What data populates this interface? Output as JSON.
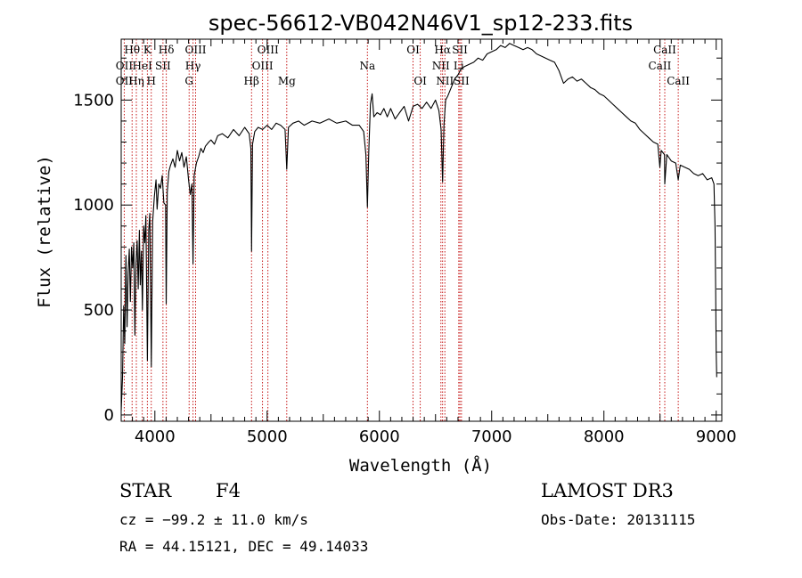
{
  "chart_data": {
    "type": "line",
    "title": "spec-56612-VB042N46V1_sp12-233.fits",
    "xlabel": "Wavelength (Å)",
    "ylabel": "Flux (relative)",
    "xlim": [
      3700,
      9050
    ],
    "ylim": [
      -30,
      1790
    ],
    "x_ticks": [
      4000,
      5000,
      6000,
      7000,
      8000,
      9000
    ],
    "y_ticks": [
      0,
      500,
      1000,
      1500
    ],
    "series": [
      {
        "name": "flux",
        "points": [
          [
            3700,
            20
          ],
          [
            3712,
            180
          ],
          [
            3722,
            520
          ],
          [
            3732,
            340
          ],
          [
            3742,
            760
          ],
          [
            3752,
            420
          ],
          [
            3762,
            680
          ],
          [
            3772,
            790
          ],
          [
            3782,
            540
          ],
          [
            3792,
            800
          ],
          [
            3802,
            700
          ],
          [
            3812,
            820
          ],
          [
            3822,
            380
          ],
          [
            3832,
            720
          ],
          [
            3842,
            830
          ],
          [
            3852,
            600
          ],
          [
            3862,
            880
          ],
          [
            3870,
            620
          ],
          [
            3880,
            780
          ],
          [
            3889,
            500
          ],
          [
            3900,
            900
          ],
          [
            3910,
            820
          ],
          [
            3920,
            950
          ],
          [
            3933,
            260
          ],
          [
            3945,
            880
          ],
          [
            3955,
            960
          ],
          [
            3968,
            230
          ],
          [
            3980,
            920
          ],
          [
            3995,
            1040
          ],
          [
            4010,
            1120
          ],
          [
            4020,
            980
          ],
          [
            4035,
            1100
          ],
          [
            4050,
            1080
          ],
          [
            4065,
            1140
          ],
          [
            4080,
            1010
          ],
          [
            4095,
            1000
          ],
          [
            4101,
            530
          ],
          [
            4110,
            1060
          ],
          [
            4125,
            1160
          ],
          [
            4140,
            1190
          ],
          [
            4160,
            1220
          ],
          [
            4180,
            1180
          ],
          [
            4200,
            1260
          ],
          [
            4220,
            1210
          ],
          [
            4240,
            1250
          ],
          [
            4260,
            1180
          ],
          [
            4280,
            1230
          ],
          [
            4300,
            1120
          ],
          [
            4315,
            1050
          ],
          [
            4330,
            1100
          ],
          [
            4340,
            720
          ],
          [
            4350,
            1140
          ],
          [
            4370,
            1200
          ],
          [
            4390,
            1230
          ],
          [
            4410,
            1270
          ],
          [
            4430,
            1250
          ],
          [
            4450,
            1280
          ],
          [
            4480,
            1300
          ],
          [
            4500,
            1310
          ],
          [
            4530,
            1290
          ],
          [
            4560,
            1330
          ],
          [
            4600,
            1340
          ],
          [
            4650,
            1320
          ],
          [
            4700,
            1360
          ],
          [
            4750,
            1330
          ],
          [
            4800,
            1370
          ],
          [
            4840,
            1340
          ],
          [
            4855,
            1270
          ],
          [
            4861,
            780
          ],
          [
            4870,
            1290
          ],
          [
            4890,
            1350
          ],
          [
            4920,
            1370
          ],
          [
            4960,
            1360
          ],
          [
            5000,
            1380
          ],
          [
            5040,
            1360
          ],
          [
            5080,
            1390
          ],
          [
            5120,
            1380
          ],
          [
            5160,
            1360
          ],
          [
            5175,
            1170
          ],
          [
            5190,
            1370
          ],
          [
            5230,
            1390
          ],
          [
            5280,
            1400
          ],
          [
            5330,
            1380
          ],
          [
            5400,
            1400
          ],
          [
            5470,
            1390
          ],
          [
            5550,
            1410
          ],
          [
            5620,
            1390
          ],
          [
            5700,
            1400
          ],
          [
            5760,
            1380
          ],
          [
            5820,
            1380
          ],
          [
            5860,
            1350
          ],
          [
            5880,
            1240
          ],
          [
            5893,
            990
          ],
          [
            5905,
            1250
          ],
          [
            5920,
            1480
          ],
          [
            5935,
            1530
          ],
          [
            5950,
            1420
          ],
          [
            5980,
            1440
          ],
          [
            6010,
            1430
          ],
          [
            6040,
            1460
          ],
          [
            6070,
            1420
          ],
          [
            6100,
            1460
          ],
          [
            6140,
            1410
          ],
          [
            6180,
            1440
          ],
          [
            6220,
            1470
          ],
          [
            6260,
            1400
          ],
          [
            6300,
            1470
          ],
          [
            6340,
            1480
          ],
          [
            6380,
            1460
          ],
          [
            6420,
            1490
          ],
          [
            6460,
            1460
          ],
          [
            6500,
            1500
          ],
          [
            6530,
            1450
          ],
          [
            6550,
            1360
          ],
          [
            6563,
            1110
          ],
          [
            6575,
            1380
          ],
          [
            6590,
            1500
          ],
          [
            6610,
            1520
          ],
          [
            6640,
            1560
          ],
          [
            6670,
            1600
          ],
          [
            6700,
            1620
          ],
          [
            6730,
            1650
          ],
          [
            6760,
            1660
          ],
          [
            6800,
            1670
          ],
          [
            6840,
            1680
          ],
          [
            6880,
            1700
          ],
          [
            6920,
            1690
          ],
          [
            6960,
            1720
          ],
          [
            7000,
            1730
          ],
          [
            7040,
            1740
          ],
          [
            7080,
            1760
          ],
          [
            7120,
            1750
          ],
          [
            7160,
            1770
          ],
          [
            7200,
            1760
          ],
          [
            7240,
            1750
          ],
          [
            7280,
            1740
          ],
          [
            7320,
            1750
          ],
          [
            7360,
            1740
          ],
          [
            7400,
            1720
          ],
          [
            7440,
            1710
          ],
          [
            7480,
            1700
          ],
          [
            7520,
            1690
          ],
          [
            7560,
            1680
          ],
          [
            7600,
            1640
          ],
          [
            7640,
            1580
          ],
          [
            7680,
            1600
          ],
          [
            7720,
            1610
          ],
          [
            7760,
            1590
          ],
          [
            7800,
            1600
          ],
          [
            7840,
            1580
          ],
          [
            7880,
            1560
          ],
          [
            7920,
            1550
          ],
          [
            7960,
            1530
          ],
          [
            8000,
            1520
          ],
          [
            8040,
            1500
          ],
          [
            8080,
            1480
          ],
          [
            8120,
            1460
          ],
          [
            8160,
            1440
          ],
          [
            8200,
            1420
          ],
          [
            8240,
            1400
          ],
          [
            8280,
            1390
          ],
          [
            8320,
            1360
          ],
          [
            8360,
            1340
          ],
          [
            8400,
            1320
          ],
          [
            8440,
            1300
          ],
          [
            8480,
            1290
          ],
          [
            8498,
            1180
          ],
          [
            8510,
            1260
          ],
          [
            8540,
            1240
          ],
          [
            8542,
            1100
          ],
          [
            8560,
            1240
          ],
          [
            8600,
            1210
          ],
          [
            8640,
            1200
          ],
          [
            8662,
            1120
          ],
          [
            8680,
            1190
          ],
          [
            8720,
            1180
          ],
          [
            8760,
            1170
          ],
          [
            8800,
            1150
          ],
          [
            8840,
            1140
          ],
          [
            8880,
            1150
          ],
          [
            8920,
            1120
          ],
          [
            8960,
            1130
          ],
          [
            8980,
            1100
          ],
          [
            8990,
            900
          ],
          [
            8995,
            600
          ],
          [
            9000,
            300
          ],
          [
            9005,
            180
          ]
        ]
      }
    ],
    "spectral_lines": [
      {
        "label": "OII",
        "wavelength": 3727,
        "row": 2
      },
      {
        "label": "OII",
        "wavelength": 3727,
        "row": 3
      },
      {
        "label": "Hθ",
        "wavelength": 3797,
        "row": 1
      },
      {
        "label": "Hη",
        "wavelength": 3835,
        "row": 3
      },
      {
        "label": "HeI",
        "wavelength": 3888,
        "row": 2
      },
      {
        "label": "K",
        "wavelength": 3933,
        "row": 1
      },
      {
        "label": "H",
        "wavelength": 3968,
        "row": 3
      },
      {
        "label": "SII",
        "wavelength": 4072,
        "row": 2
      },
      {
        "label": "Hδ",
        "wavelength": 4102,
        "row": 1
      },
      {
        "label": "G",
        "wavelength": 4305,
        "row": 3
      },
      {
        "label": "Hγ",
        "wavelength": 4340,
        "row": 2
      },
      {
        "label": "OIII",
        "wavelength": 4363,
        "row": 1
      },
      {
        "label": "Hβ",
        "wavelength": 4861,
        "row": 3
      },
      {
        "label": "OIII",
        "wavelength": 4959,
        "row": 2
      },
      {
        "label": "OIII",
        "wavelength": 5007,
        "row": 1
      },
      {
        "label": "Mg",
        "wavelength": 5175,
        "row": 3
      },
      {
        "label": "Na",
        "wavelength": 5893,
        "row": 2
      },
      {
        "label": "OI",
        "wavelength": 6300,
        "row": 1
      },
      {
        "label": "OI",
        "wavelength": 6364,
        "row": 3
      },
      {
        "label": "NII",
        "wavelength": 6548,
        "row": 2
      },
      {
        "label": "Hα",
        "wavelength": 6563,
        "row": 1
      },
      {
        "label": "NII",
        "wavelength": 6583,
        "row": 3
      },
      {
        "label": "SII",
        "wavelength": 6717,
        "row": 1
      },
      {
        "label": "Li",
        "wavelength": 6707,
        "row": 2
      },
      {
        "label": "SII",
        "wavelength": 6731,
        "row": 3
      },
      {
        "label": "CaII",
        "wavelength": 8498,
        "row": 2
      },
      {
        "label": "CaII",
        "wavelength": 8542,
        "row": 1
      },
      {
        "label": "CaII",
        "wavelength": 8662,
        "row": 3
      }
    ]
  },
  "info": {
    "class": "STAR",
    "subclass": "F4",
    "survey": "LAMOST DR3",
    "cz": "cz = −99.2 ± 11.0 km/s",
    "obs_date": "Obs-Date: 20131115",
    "radec": "RA =  44.15121, DEC =  49.14033"
  }
}
